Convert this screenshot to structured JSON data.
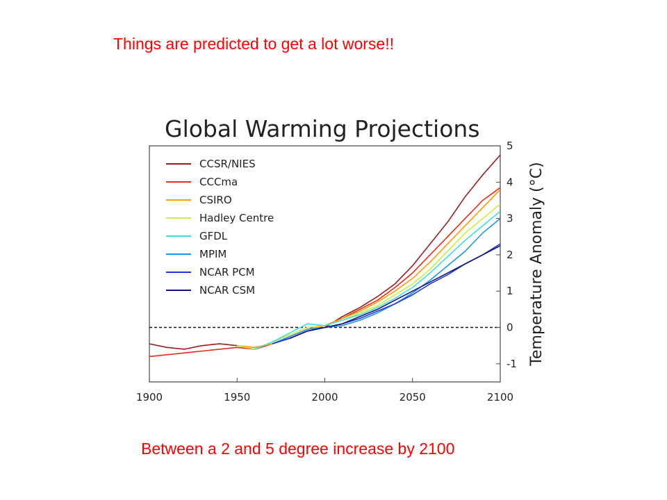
{
  "slide": {
    "heading": "Things are predicted to get a lot worse!!",
    "footer": "Between a 2 and 5 degree increase by 2100",
    "text_color": "#ff0000"
  },
  "chart_data": {
    "type": "line",
    "title": "Global Warming Projections",
    "xlabel": "",
    "ylabel": "Temperature Anomaly (°C)",
    "xlim": [
      1900,
      2100
    ],
    "ylim": [
      -1.5,
      5
    ],
    "xticks": [
      1900,
      1950,
      2000,
      2050,
      2100
    ],
    "yticks": [
      -1,
      0,
      1,
      2,
      3,
      4,
      5
    ],
    "reference_line": {
      "y": 0,
      "style": "dashed"
    },
    "grid": false,
    "legend_position": "top-left",
    "series": [
      {
        "name": "CCSR/NIES",
        "color": "#9b1c1c",
        "x": [
          1900,
          1910,
          1920,
          1930,
          1940,
          1950,
          1960,
          1970,
          1980,
          1990,
          2000,
          2010,
          2020,
          2030,
          2040,
          2050,
          2060,
          2070,
          2080,
          2090,
          2100
        ],
        "y": [
          -0.45,
          -0.55,
          -0.6,
          -0.5,
          -0.45,
          -0.5,
          -0.6,
          -0.45,
          -0.3,
          -0.1,
          0.0,
          0.3,
          0.55,
          0.85,
          1.2,
          1.7,
          2.3,
          2.9,
          3.6,
          4.2,
          4.75
        ]
      },
      {
        "name": "CCCma",
        "color": "#e8291c",
        "x": [
          1900,
          1910,
          1920,
          1930,
          1940,
          1950,
          1960,
          1970,
          1980,
          1990,
          2000,
          2010,
          2020,
          2030,
          2040,
          2050,
          2060,
          2070,
          2080,
          2090,
          2100
        ],
        "y": [
          -0.8,
          -0.75,
          -0.7,
          -0.65,
          -0.6,
          -0.55,
          -0.6,
          -0.45,
          -0.25,
          -0.05,
          0.05,
          0.25,
          0.5,
          0.75,
          1.1,
          1.5,
          2.0,
          2.5,
          3.0,
          3.5,
          3.85
        ]
      },
      {
        "name": "CSIRO",
        "color": "#ff9a00",
        "x": [
          1950,
          1960,
          1970,
          1980,
          1990,
          2000,
          2010,
          2020,
          2030,
          2040,
          2050,
          2060,
          2070,
          2080,
          2090,
          2100
        ],
        "y": [
          -0.5,
          -0.55,
          -0.45,
          -0.25,
          -0.05,
          0.05,
          0.25,
          0.45,
          0.7,
          1.0,
          1.35,
          1.8,
          2.3,
          2.8,
          3.3,
          3.8
        ]
      },
      {
        "name": "Hadley Centre",
        "color": "#c8f03c",
        "x": [
          1950,
          1960,
          1970,
          1980,
          1990,
          2000,
          2010,
          2020,
          2030,
          2040,
          2050,
          2060,
          2070,
          2080,
          2090,
          2100
        ],
        "y": [
          -0.5,
          -0.6,
          -0.4,
          -0.2,
          0.0,
          0.05,
          0.2,
          0.4,
          0.6,
          0.9,
          1.2,
          1.6,
          2.1,
          2.6,
          3.0,
          3.4
        ]
      },
      {
        "name": "GFDL",
        "color": "#40dede",
        "x": [
          1960,
          1970,
          1980,
          1990,
          2000,
          2010,
          2020,
          2030,
          2040,
          2050,
          2060,
          2070,
          2080,
          2090,
          2100
        ],
        "y": [
          -0.6,
          -0.4,
          -0.15,
          0.1,
          0.05,
          0.2,
          0.35,
          0.55,
          0.8,
          1.1,
          1.5,
          1.95,
          2.4,
          2.8,
          3.2
        ]
      },
      {
        "name": "MPIM",
        "color": "#1e96e6",
        "x": [
          1970,
          1980,
          1990,
          2000,
          2010,
          2020,
          2030,
          2040,
          2050,
          2060,
          2070,
          2080,
          2090,
          2100
        ],
        "y": [
          -0.45,
          -0.25,
          -0.05,
          0.0,
          0.05,
          0.2,
          0.4,
          0.65,
          0.95,
          1.3,
          1.7,
          2.1,
          2.6,
          3.0
        ]
      },
      {
        "name": "NCAR PCM",
        "color": "#2238d8",
        "x": [
          1970,
          1980,
          1990,
          2000,
          2010,
          2020,
          2030,
          2040,
          2050,
          2060,
          2070,
          2080,
          2090,
          2100
        ],
        "y": [
          -0.45,
          -0.3,
          -0.1,
          0.0,
          0.1,
          0.25,
          0.45,
          0.65,
          0.9,
          1.2,
          1.45,
          1.75,
          2.0,
          2.3
        ]
      },
      {
        "name": "NCAR CSM",
        "color": "#0c1478",
        "x": [
          1980,
          1990,
          2000,
          2010,
          2020,
          2030,
          2040,
          2050,
          2060,
          2070,
          2080,
          2090,
          2100
        ],
        "y": [
          -0.3,
          -0.1,
          0.0,
          0.1,
          0.3,
          0.5,
          0.75,
          1.0,
          1.25,
          1.5,
          1.75,
          2.0,
          2.25
        ]
      }
    ]
  }
}
